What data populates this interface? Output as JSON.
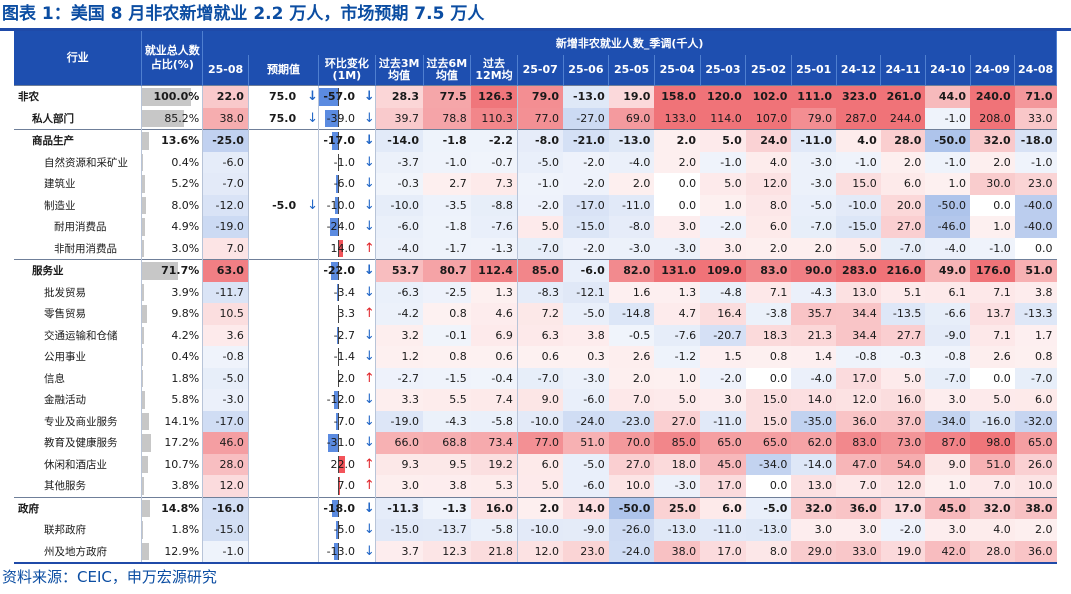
{
  "title": "图表 1：美国 8 月非农新增就业 2.2 万人，市场预期 7.5 万人",
  "source": "资料来源：CEIC，申万宏源研究",
  "colors": {
    "header": "#1e4fb0",
    "title": "#0b4da2",
    "pos": "#f3545a",
    "neg": "#5b8be0"
  },
  "headers": {
    "industry": "行业",
    "share": "就业总人数占比(%)",
    "group": "新增非农就业人数_季调(千人)",
    "cur": "25-08",
    "fc": "预期值",
    "chg": "环比变化(1M)",
    "avg3": "过去3M均值",
    "avg6": "过去6M均值",
    "avg12": "过去12M均",
    "months": [
      "25-07",
      "25-06",
      "25-05",
      "25-04",
      "25-03",
      "25-02",
      "25-01",
      "24-12",
      "24-11",
      "24-10",
      "24-09",
      "24-08"
    ]
  },
  "rows": [
    {
      "name": "非农",
      "level": 0,
      "major": true,
      "share": "100.0%",
      "share_pct": 100,
      "cur": "22.0",
      "fc": "75.0",
      "fc_dir": "down",
      "chg": "-57.0",
      "chg_val": -57.0,
      "chg_dir": "down",
      "avg3": "28.3",
      "avg6": "77.5",
      "avg12": "126.3",
      "m": [
        "79.0",
        "-13.0",
        "19.0",
        "158.0",
        "120.0",
        "102.0",
        "111.0",
        "323.0",
        "261.0",
        "44.0",
        "240.0",
        "71.0"
      ]
    },
    {
      "name": "私人部门",
      "level": 1,
      "major": false,
      "bold": true,
      "share": "85.2%",
      "share_pct": 85.2,
      "cur": "38.0",
      "fc": "75.0",
      "fc_dir": "down",
      "chg": "-39.0",
      "chg_val": -39.0,
      "chg_dir": "down",
      "avg3": "39.7",
      "avg6": "78.8",
      "avg12": "110.3",
      "m": [
        "77.0",
        "-27.0",
        "69.0",
        "133.0",
        "114.0",
        "107.0",
        "79.0",
        "287.0",
        "244.0",
        "-1.0",
        "208.0",
        "33.0"
      ]
    },
    {
      "name": "商品生产",
      "level": 1,
      "major": true,
      "share": "13.6%",
      "share_pct": 13.6,
      "cur": "-25.0",
      "fc": "",
      "fc_dir": "",
      "chg": "-17.0",
      "chg_val": -17.0,
      "chg_dir": "down",
      "avg3": "-14.0",
      "avg6": "-1.8",
      "avg12": "-2.2",
      "m": [
        "-8.0",
        "-21.0",
        "-13.0",
        "2.0",
        "5.0",
        "24.0",
        "-11.0",
        "4.0",
        "28.0",
        "-50.0",
        "32.0",
        "-18.0"
      ]
    },
    {
      "name": "自然资源和采矿业",
      "level": 2,
      "major": false,
      "share": "0.4%",
      "share_pct": 0.4,
      "cur": "-6.0",
      "fc": "",
      "fc_dir": "",
      "chg": "-1.0",
      "chg_val": -1.0,
      "chg_dir": "down",
      "avg3": "-3.7",
      "avg6": "-1.0",
      "avg12": "-0.7",
      "m": [
        "-5.0",
        "-2.0",
        "-4.0",
        "2.0",
        "-1.0",
        "4.0",
        "-3.0",
        "-1.0",
        "2.0",
        "-1.0",
        "2.0",
        "-1.0"
      ]
    },
    {
      "name": "建筑业",
      "level": 2,
      "major": false,
      "share": "5.2%",
      "share_pct": 5.2,
      "cur": "-7.0",
      "fc": "",
      "fc_dir": "",
      "chg": "-6.0",
      "chg_val": -6.0,
      "chg_dir": "down",
      "avg3": "-0.3",
      "avg6": "2.7",
      "avg12": "7.3",
      "m": [
        "-1.0",
        "-2.0",
        "2.0",
        "0.0",
        "5.0",
        "12.0",
        "-3.0",
        "15.0",
        "6.0",
        "1.0",
        "30.0",
        "23.0"
      ]
    },
    {
      "name": "制造业",
      "level": 2,
      "major": false,
      "share": "8.0%",
      "share_pct": 8.0,
      "cur": "-12.0",
      "fc": "-5.0",
      "fc_dir": "down",
      "chg": "-10.0",
      "chg_val": -10.0,
      "chg_dir": "down",
      "avg3": "-10.0",
      "avg6": "-3.5",
      "avg12": "-8.8",
      "m": [
        "-2.0",
        "-17.0",
        "-11.0",
        "0.0",
        "1.0",
        "8.0",
        "-5.0",
        "-10.0",
        "20.0",
        "-50.0",
        "0.0",
        "-40.0"
      ]
    },
    {
      "name": "耐用消费品",
      "level": 3,
      "major": false,
      "share": "4.9%",
      "share_pct": 4.9,
      "cur": "-19.0",
      "fc": "",
      "fc_dir": "",
      "chg": "-24.0",
      "chg_val": -24.0,
      "chg_dir": "down",
      "avg3": "-6.0",
      "avg6": "-1.8",
      "avg12": "-7.6",
      "m": [
        "5.0",
        "-15.0",
        "-8.0",
        "3.0",
        "-2.0",
        "6.0",
        "-7.0",
        "-15.0",
        "27.0",
        "-46.0",
        "1.0",
        "-40.0"
      ]
    },
    {
      "name": "非耐用消费品",
      "level": 3,
      "major": false,
      "share": "3.0%",
      "share_pct": 3.0,
      "cur": "7.0",
      "fc": "",
      "fc_dir": "",
      "chg": "14.0",
      "chg_val": 14.0,
      "chg_dir": "up",
      "avg3": "-4.0",
      "avg6": "-1.7",
      "avg12": "-1.3",
      "m": [
        "-7.0",
        "-2.0",
        "-3.0",
        "-3.0",
        "3.0",
        "2.0",
        "2.0",
        "5.0",
        "-7.0",
        "-4.0",
        "-1.0",
        "0.0"
      ]
    },
    {
      "name": "服务业",
      "level": 1,
      "major": true,
      "share": "71.7%",
      "share_pct": 71.7,
      "cur": "63.0",
      "fc": "",
      "fc_dir": "",
      "chg": "-22.0",
      "chg_val": -22.0,
      "chg_dir": "down",
      "avg3": "53.7",
      "avg6": "80.7",
      "avg12": "112.4",
      "m": [
        "85.0",
        "-6.0",
        "82.0",
        "131.0",
        "109.0",
        "83.0",
        "90.0",
        "283.0",
        "216.0",
        "49.0",
        "176.0",
        "51.0"
      ]
    },
    {
      "name": "批发贸易",
      "level": 2,
      "major": false,
      "share": "3.9%",
      "share_pct": 3.9,
      "cur": "-11.7",
      "fc": "",
      "fc_dir": "",
      "chg": "-3.4",
      "chg_val": -3.4,
      "chg_dir": "down",
      "avg3": "-6.3",
      "avg6": "-2.5",
      "avg12": "1.3",
      "m": [
        "-8.3",
        "-12.1",
        "1.6",
        "1.3",
        "-4.8",
        "7.1",
        "-4.3",
        "13.0",
        "5.1",
        "6.1",
        "7.1",
        "3.8"
      ]
    },
    {
      "name": "零售贸易",
      "level": 2,
      "major": false,
      "share": "9.8%",
      "share_pct": 9.8,
      "cur": "10.5",
      "fc": "",
      "fc_dir": "",
      "chg": "3.3",
      "chg_val": 3.3,
      "chg_dir": "up",
      "avg3": "-4.2",
      "avg6": "0.8",
      "avg12": "4.6",
      "m": [
        "7.2",
        "-5.0",
        "-14.8",
        "4.7",
        "16.4",
        "-3.8",
        "35.7",
        "34.4",
        "-13.5",
        "-6.6",
        "13.7",
        "-13.3"
      ]
    },
    {
      "name": "交通运输和仓储",
      "level": 2,
      "major": false,
      "share": "4.2%",
      "share_pct": 4.2,
      "cur": "3.6",
      "fc": "",
      "fc_dir": "",
      "chg": "-2.7",
      "chg_val": -2.7,
      "chg_dir": "down",
      "avg3": "3.2",
      "avg6": "-0.1",
      "avg12": "6.9",
      "m": [
        "6.3",
        "3.8",
        "-0.5",
        "-7.6",
        "-20.7",
        "18.3",
        "21.3",
        "34.4",
        "27.7",
        "-9.0",
        "7.1",
        "1.7"
      ]
    },
    {
      "name": "公用事业",
      "level": 2,
      "major": false,
      "share": "0.4%",
      "share_pct": 0.4,
      "cur": "-0.8",
      "fc": "",
      "fc_dir": "",
      "chg": "-1.4",
      "chg_val": -1.4,
      "chg_dir": "down",
      "avg3": "1.2",
      "avg6": "0.8",
      "avg12": "0.6",
      "m": [
        "0.6",
        "0.3",
        "2.6",
        "-1.2",
        "1.5",
        "0.8",
        "1.4",
        "-0.8",
        "-0.3",
        "-0.8",
        "2.6",
        "0.8"
      ]
    },
    {
      "name": "信息",
      "level": 2,
      "major": false,
      "share": "1.8%",
      "share_pct": 1.8,
      "cur": "-5.0",
      "fc": "",
      "fc_dir": "",
      "chg": "2.0",
      "chg_val": 2.0,
      "chg_dir": "up",
      "avg3": "-2.7",
      "avg6": "-1.5",
      "avg12": "-0.4",
      "m": [
        "-7.0",
        "-3.0",
        "2.0",
        "1.0",
        "-2.0",
        "0.0",
        "-4.0",
        "17.0",
        "5.0",
        "-7.0",
        "0.0",
        "-7.0"
      ]
    },
    {
      "name": "金融活动",
      "level": 2,
      "major": false,
      "share": "5.8%",
      "share_pct": 5.8,
      "cur": "-3.0",
      "fc": "",
      "fc_dir": "",
      "chg": "-12.0",
      "chg_val": -12.0,
      "chg_dir": "down",
      "avg3": "3.3",
      "avg6": "5.5",
      "avg12": "7.4",
      "m": [
        "9.0",
        "-6.0",
        "7.0",
        "5.0",
        "3.0",
        "15.0",
        "14.0",
        "12.0",
        "16.0",
        "3.0",
        "5.0",
        "6.0"
      ]
    },
    {
      "name": "专业及商业服务",
      "level": 2,
      "major": false,
      "share": "14.1%",
      "share_pct": 14.1,
      "cur": "-17.0",
      "fc": "",
      "fc_dir": "",
      "chg": "-7.0",
      "chg_val": -7.0,
      "chg_dir": "down",
      "avg3": "-19.0",
      "avg6": "-4.3",
      "avg12": "-5.8",
      "m": [
        "-10.0",
        "-24.0",
        "-23.0",
        "27.0",
        "-11.0",
        "15.0",
        "-35.0",
        "36.0",
        "37.0",
        "-34.0",
        "-16.0",
        "-32.0"
      ]
    },
    {
      "name": "教育及健康服务",
      "level": 2,
      "major": false,
      "share": "17.2%",
      "share_pct": 17.2,
      "cur": "46.0",
      "fc": "",
      "fc_dir": "",
      "chg": "-31.0",
      "chg_val": -31.0,
      "chg_dir": "down",
      "avg3": "66.0",
      "avg6": "68.8",
      "avg12": "73.4",
      "m": [
        "77.0",
        "51.0",
        "70.0",
        "85.0",
        "65.0",
        "65.0",
        "62.0",
        "83.0",
        "73.0",
        "87.0",
        "98.0",
        "65.0"
      ]
    },
    {
      "name": "休闲和酒店业",
      "level": 2,
      "major": false,
      "share": "10.7%",
      "share_pct": 10.7,
      "cur": "28.0",
      "fc": "",
      "fc_dir": "",
      "chg": "22.0",
      "chg_val": 22.0,
      "chg_dir": "up",
      "avg3": "9.3",
      "avg6": "9.5",
      "avg12": "19.2",
      "m": [
        "6.0",
        "-5.0",
        "27.0",
        "18.0",
        "45.0",
        "-34.0",
        "-14.0",
        "47.0",
        "54.0",
        "9.0",
        "51.0",
        "26.0"
      ]
    },
    {
      "name": "其他服务",
      "level": 2,
      "major": false,
      "share": "3.8%",
      "share_pct": 3.8,
      "cur": "12.0",
      "fc": "",
      "fc_dir": "",
      "chg": "7.0",
      "chg_val": 7.0,
      "chg_dir": "up",
      "avg3": "3.0",
      "avg6": "3.8",
      "avg12": "5.3",
      "m": [
        "5.0",
        "-6.0",
        "10.0",
        "-3.0",
        "17.0",
        "0.0",
        "13.0",
        "7.0",
        "12.0",
        "1.0",
        "7.0",
        "10.0"
      ]
    },
    {
      "name": "政府",
      "level": 0,
      "major": true,
      "share": "14.8%",
      "share_pct": 14.8,
      "cur": "-16.0",
      "fc": "",
      "fc_dir": "",
      "chg": "-18.0",
      "chg_val": -18.0,
      "chg_dir": "down",
      "avg3": "-11.3",
      "avg6": "-1.3",
      "avg12": "16.0",
      "m": [
        "2.0",
        "14.0",
        "-50.0",
        "25.0",
        "6.0",
        "-5.0",
        "32.0",
        "36.0",
        "17.0",
        "45.0",
        "32.0",
        "38.0"
      ]
    },
    {
      "name": "联邦政府",
      "level": 2,
      "major": false,
      "share": "1.8%",
      "share_pct": 1.8,
      "cur": "-15.0",
      "fc": "",
      "fc_dir": "",
      "chg": "-5.0",
      "chg_val": -5.0,
      "chg_dir": "down",
      "avg3": "-15.0",
      "avg6": "-13.7",
      "avg12": "-5.8",
      "m": [
        "-10.0",
        "-9.0",
        "-26.0",
        "-13.0",
        "-11.0",
        "-13.0",
        "3.0",
        "3.0",
        "-2.0",
        "3.0",
        "4.0",
        "2.0"
      ]
    },
    {
      "name": "州及地方政府",
      "level": 2,
      "major": false,
      "share": "12.9%",
      "share_pct": 12.9,
      "cur": "-1.0",
      "fc": "",
      "fc_dir": "",
      "chg": "-13.0",
      "chg_val": -13.0,
      "chg_dir": "down",
      "avg3": "3.7",
      "avg6": "12.3",
      "avg12": "21.8",
      "m": [
        "12.0",
        "23.0",
        "-24.0",
        "38.0",
        "17.0",
        "8.0",
        "29.0",
        "33.0",
        "19.0",
        "42.0",
        "28.0",
        "36.0"
      ]
    }
  ]
}
